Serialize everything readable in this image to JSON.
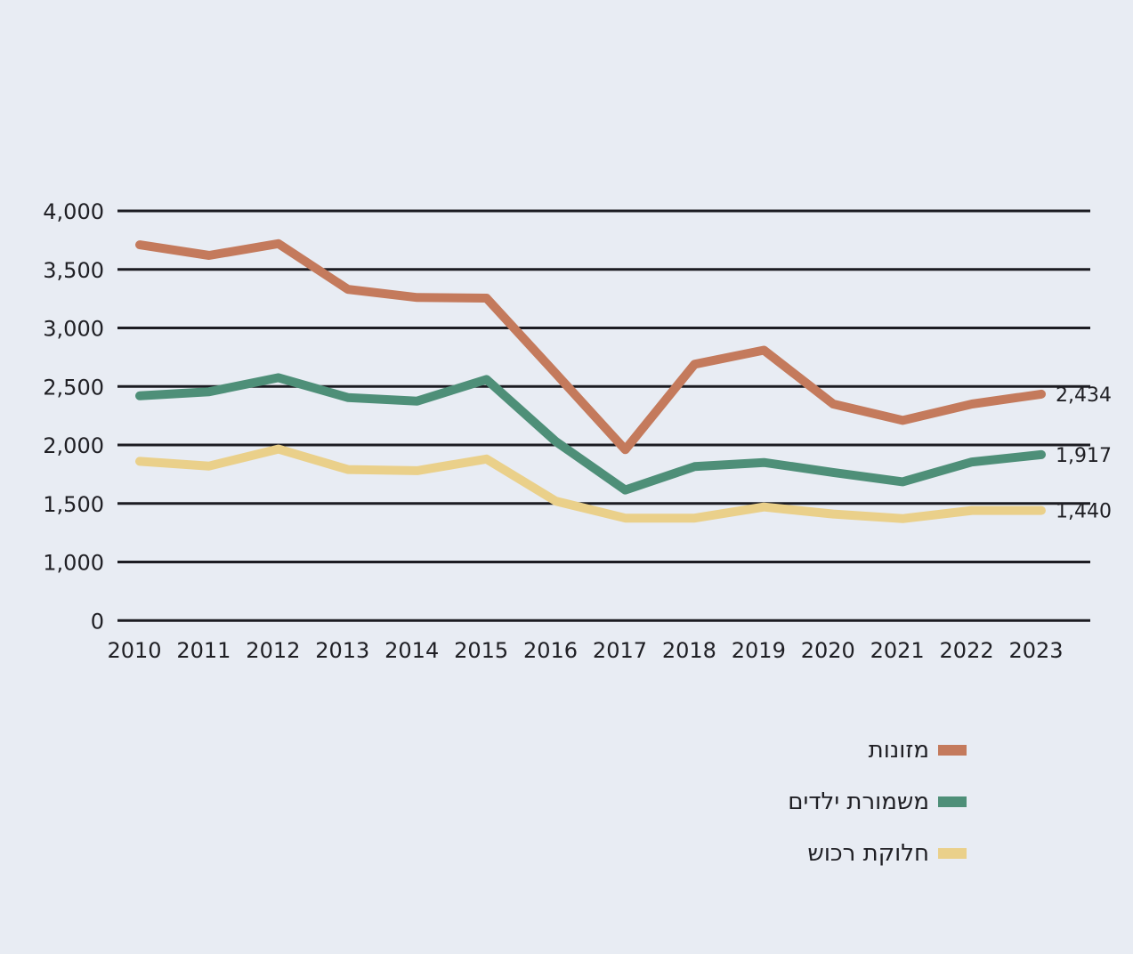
{
  "chart_data": {
    "type": "line",
    "title": "",
    "xlabel": "",
    "ylabel": "",
    "x": [
      "2010",
      "2011",
      "2012",
      "2013",
      "2014",
      "2015",
      "2016",
      "2017",
      "2018",
      "2019",
      "2020",
      "2021",
      "2022",
      "2023"
    ],
    "y_ticks": [
      {
        "value": 0,
        "label": "0"
      },
      {
        "value": 1000,
        "label": "1,000"
      },
      {
        "value": 1500,
        "label": "1,500"
      },
      {
        "value": 2000,
        "label": "2,000"
      },
      {
        "value": 2500,
        "label": "2,500"
      },
      {
        "value": 3000,
        "label": "3,000"
      },
      {
        "value": 3500,
        "label": "3,500"
      },
      {
        "value": 4000,
        "label": "4,000"
      }
    ],
    "ylim": [
      0,
      4000
    ],
    "y_axis_break": "between 0 and 1,000",
    "grid": true,
    "legend_position": "bottom-right",
    "series": [
      {
        "name": "מזונות",
        "color": "#C47A5C",
        "values": [
          3710,
          3620,
          3720,
          3330,
          3260,
          3255,
          2610,
          1960,
          2690,
          2810,
          2350,
          2210,
          2350,
          2434
        ],
        "end_label": "2,434"
      },
      {
        "name": "משמורת ילדים",
        "color": "#4E8F78",
        "values": [
          2420,
          2455,
          2575,
          2405,
          2375,
          2560,
          2030,
          1615,
          1815,
          1850,
          1765,
          1685,
          1855,
          1917
        ],
        "end_label": "1,917"
      },
      {
        "name": "חלוקת רכוש",
        "color": "#EAD08A",
        "values": [
          1860,
          1820,
          1965,
          1790,
          1780,
          1880,
          1520,
          1375,
          1375,
          1470,
          1410,
          1370,
          1440,
          1440
        ],
        "end_label": "1,440"
      }
    ]
  },
  "legend": {
    "items": [
      {
        "label": "מזונות",
        "color": "#C47A5C"
      },
      {
        "label": "משמורת ילדים",
        "color": "#4E8F78"
      },
      {
        "label": "חלוקת רכוש",
        "color": "#EAD08A"
      }
    ]
  }
}
